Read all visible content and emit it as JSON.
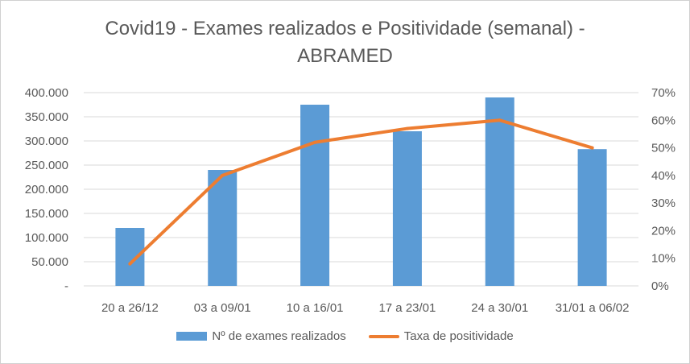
{
  "chart_data": {
    "type": "bar",
    "title_lines": [
      "Covid19 - Exames realizados e Positividade (semanal) -",
      "ABRAMED"
    ],
    "categories": [
      "20 a 26/12",
      "03 a 09/01",
      "10 a 16/01",
      "17 a 23/01",
      "24 a 30/01",
      "31/01 a 06/02"
    ],
    "series": [
      {
        "name": "Nº de exames realizados",
        "type": "bar",
        "axis": "left",
        "color": "#5b9bd5",
        "values": [
          120000,
          240000,
          375000,
          320000,
          390000,
          283000
        ]
      },
      {
        "name": "Taxa de positividade",
        "type": "line",
        "axis": "right",
        "color": "#ed7d31",
        "values": [
          0.08,
          0.4,
          0.52,
          0.57,
          0.6,
          0.5
        ]
      }
    ],
    "left_axis": {
      "ylim": [
        0,
        400000
      ],
      "tick_labels": [
        "-",
        "50.000",
        "100.000",
        "150.000",
        "200.000",
        "250.000",
        "300.000",
        "350.000",
        "400.000"
      ]
    },
    "right_axis": {
      "ylim": [
        0,
        0.7
      ],
      "tick_labels": [
        "0%",
        "10%",
        "20%",
        "30%",
        "40%",
        "50%",
        "60%",
        "70%"
      ]
    },
    "grid": true,
    "legend_position": "bottom"
  }
}
